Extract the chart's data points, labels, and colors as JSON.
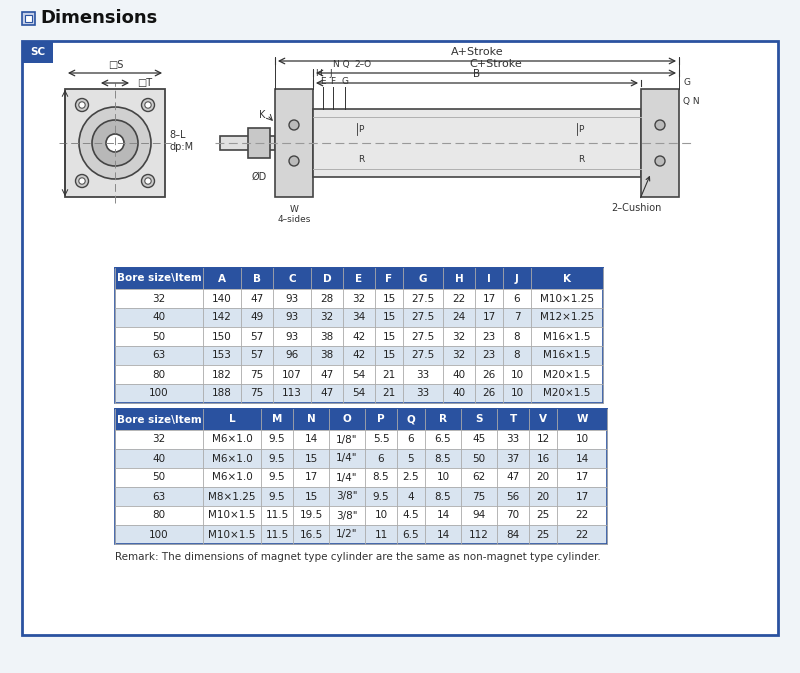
{
  "title": "Dimensions",
  "subtitle": "SC",
  "outer_bg": "#f0f4f8",
  "inner_bg": "#ffffff",
  "border_color": "#2a52a0",
  "header_bg": "#2a52a0",
  "header_fg": "#ffffff",
  "row_alt_color": "#d9e4f0",
  "row_white": "#ffffff",
  "grid_color": "#aaaaaa",
  "table1_header": [
    "Bore size\\Item",
    "A",
    "B",
    "C",
    "D",
    "E",
    "F",
    "G",
    "H",
    "I",
    "J",
    "K"
  ],
  "table1_col_widths": [
    88,
    38,
    32,
    38,
    32,
    32,
    28,
    40,
    32,
    28,
    28,
    72
  ],
  "table1_data": [
    [
      "32",
      "140",
      "47",
      "93",
      "28",
      "32",
      "15",
      "27.5",
      "22",
      "17",
      "6",
      "M10×1.25"
    ],
    [
      "40",
      "142",
      "49",
      "93",
      "32",
      "34",
      "15",
      "27.5",
      "24",
      "17",
      "7",
      "M12×1.25"
    ],
    [
      "50",
      "150",
      "57",
      "93",
      "38",
      "42",
      "15",
      "27.5",
      "32",
      "23",
      "8",
      "M16×1.5"
    ],
    [
      "63",
      "153",
      "57",
      "96",
      "38",
      "42",
      "15",
      "27.5",
      "32",
      "23",
      "8",
      "M16×1.5"
    ],
    [
      "80",
      "182",
      "75",
      "107",
      "47",
      "54",
      "21",
      "33",
      "40",
      "26",
      "10",
      "M20×1.5"
    ],
    [
      "100",
      "188",
      "75",
      "113",
      "47",
      "54",
      "21",
      "33",
      "40",
      "26",
      "10",
      "M20×1.5"
    ]
  ],
  "table2_header": [
    "Bore size\\Item",
    "L",
    "M",
    "N",
    "O",
    "P",
    "Q",
    "R",
    "S",
    "T",
    "V",
    "W"
  ],
  "table2_col_widths": [
    88,
    58,
    32,
    36,
    36,
    32,
    28,
    36,
    36,
    32,
    28,
    50
  ],
  "table2_data": [
    [
      "32",
      "M6×1.0",
      "9.5",
      "14",
      "1/8\"",
      "5.5",
      "6",
      "6.5",
      "45",
      "33",
      "12",
      "10"
    ],
    [
      "40",
      "M6×1.0",
      "9.5",
      "15",
      "1/4\"",
      "6",
      "5",
      "8.5",
      "50",
      "37",
      "16",
      "14"
    ],
    [
      "50",
      "M6×1.0",
      "9.5",
      "17",
      "1/4\"",
      "8.5",
      "2.5",
      "10",
      "62",
      "47",
      "20",
      "17"
    ],
    [
      "63",
      "M8×1.25",
      "9.5",
      "15",
      "3/8\"",
      "9.5",
      "4",
      "8.5",
      "75",
      "56",
      "20",
      "17"
    ],
    [
      "80",
      "M10×1.5",
      "11.5",
      "19.5",
      "3/8\"",
      "10",
      "4.5",
      "14",
      "94",
      "70",
      "25",
      "22"
    ],
    [
      "100",
      "M10×1.5",
      "11.5",
      "16.5",
      "1/2\"",
      "11",
      "6.5",
      "14",
      "112",
      "84",
      "25",
      "22"
    ]
  ],
  "remark": "Remark: The dimensions of magnet type cylinder are the same as non-magnet type cylinder."
}
